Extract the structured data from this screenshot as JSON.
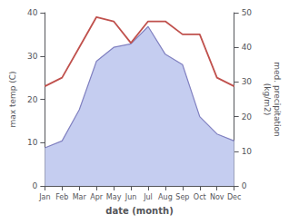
{
  "chart_data": {
    "type": "line",
    "categories": [
      "Jan",
      "Feb",
      "Mar",
      "Apr",
      "May",
      "Jun",
      "Jul",
      "Aug",
      "Sep",
      "Oct",
      "Nov",
      "Dec"
    ],
    "xlabel": "date (month)",
    "ylabel": "max temp (C)",
    "y2label": "med. precipitation\n(kg/m2)",
    "series": [
      {
        "type": "line",
        "color": "#c0514d",
        "values": [
          23,
          25,
          32,
          39,
          38,
          33,
          38,
          38,
          35,
          35,
          25,
          23
        ]
      },
      {
        "type": "area",
        "color": "#c5cdf0",
        "axis": "y2",
        "values": [
          11,
          13,
          22,
          36,
          40,
          41,
          46,
          38,
          35,
          20,
          15,
          13
        ]
      },
      {
        "type": "line",
        "color": "#8080c0",
        "axis": "y2",
        "values": [
          11,
          13,
          22,
          36,
          40,
          41,
          46,
          38,
          35,
          20,
          15,
          13
        ]
      }
    ],
    "ylim": [
      0,
      40
    ],
    "yticks": [
      0,
      10,
      20,
      30,
      40
    ],
    "y2lim": [
      0,
      50
    ],
    "y2ticks": [
      0,
      10,
      20,
      30,
      40,
      50
    ],
    "grid": false
  }
}
